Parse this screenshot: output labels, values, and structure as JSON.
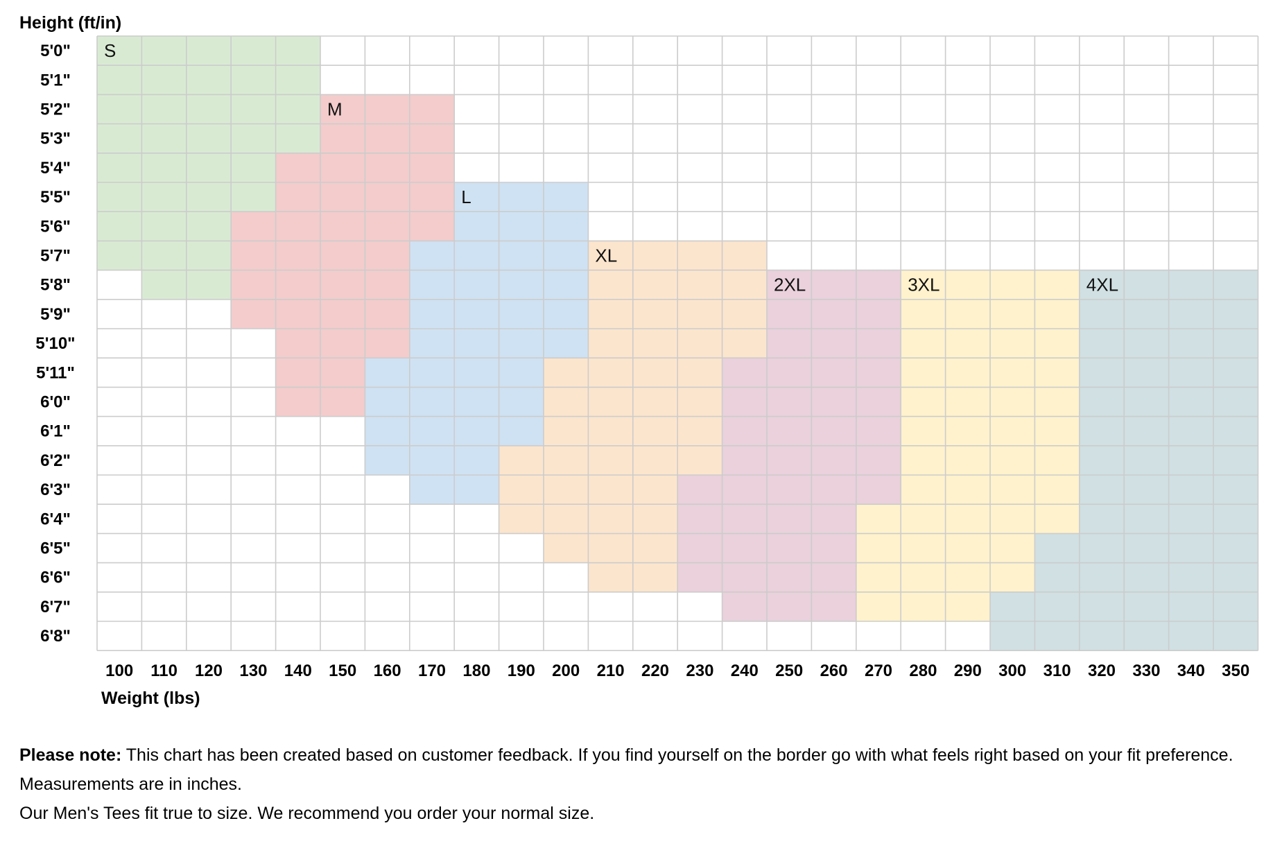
{
  "chart_data": {
    "type": "heatmap",
    "ylabel": "Height (ft/in)",
    "xlabel": "Weight (lbs)",
    "x": [
      100,
      110,
      120,
      130,
      140,
      150,
      160,
      170,
      180,
      190,
      200,
      210,
      220,
      230,
      240,
      250,
      260,
      270,
      280,
      290,
      300,
      310,
      320,
      330,
      340,
      350
    ],
    "y": [
      "5'0\"",
      "5'1\"",
      "5'2\"",
      "5'3\"",
      "5'4\"",
      "5'5\"",
      "5'6\"",
      "5'7\"",
      "5'8\"",
      "5'9\"",
      "5'10\"",
      "5'11\"",
      "6'0\"",
      "6'1\"",
      "6'2\"",
      "6'3\"",
      "6'4\"",
      "6'5\"",
      "6'6\"",
      "6'7\"",
      "6'8\""
    ],
    "sizes": [
      {
        "name": "S",
        "color": "#d9ead3"
      },
      {
        "name": "M",
        "color": "#f4cccc"
      },
      {
        "name": "L",
        "color": "#cfe2f3"
      },
      {
        "name": "XL",
        "color": "#fce5cd"
      },
      {
        "name": "2XL",
        "color": "#ead1dc"
      },
      {
        "name": "3XL",
        "color": "#fff2cc"
      },
      {
        "name": "4XL",
        "color": "#d0e0e3"
      }
    ],
    "size_by_height": [
      [
        {
          "size": "S",
          "from": 100,
          "to": 140
        }
      ],
      [
        {
          "size": "S",
          "from": 100,
          "to": 140
        }
      ],
      [
        {
          "size": "S",
          "from": 100,
          "to": 140
        },
        {
          "size": "M",
          "from": 150,
          "to": 170
        }
      ],
      [
        {
          "size": "S",
          "from": 100,
          "to": 140
        },
        {
          "size": "M",
          "from": 150,
          "to": 170
        }
      ],
      [
        {
          "size": "S",
          "from": 100,
          "to": 130
        },
        {
          "size": "M",
          "from": 140,
          "to": 170
        }
      ],
      [
        {
          "size": "S",
          "from": 100,
          "to": 130
        },
        {
          "size": "M",
          "from": 140,
          "to": 170
        },
        {
          "size": "L",
          "from": 180,
          "to": 200
        }
      ],
      [
        {
          "size": "S",
          "from": 100,
          "to": 120
        },
        {
          "size": "M",
          "from": 130,
          "to": 170
        },
        {
          "size": "L",
          "from": 180,
          "to": 200
        }
      ],
      [
        {
          "size": "S",
          "from": 100,
          "to": 120
        },
        {
          "size": "M",
          "from": 130,
          "to": 160
        },
        {
          "size": "L",
          "from": 170,
          "to": 200
        },
        {
          "size": "XL",
          "from": 210,
          "to": 240
        }
      ],
      [
        {
          "size": "S",
          "from": 110,
          "to": 120
        },
        {
          "size": "M",
          "from": 130,
          "to": 160
        },
        {
          "size": "L",
          "from": 170,
          "to": 200
        },
        {
          "size": "XL",
          "from": 210,
          "to": 240
        },
        {
          "size": "2XL",
          "from": 250,
          "to": 270
        },
        {
          "size": "3XL",
          "from": 280,
          "to": 310
        },
        {
          "size": "4XL",
          "from": 320,
          "to": 350
        }
      ],
      [
        {
          "size": "M",
          "from": 130,
          "to": 160
        },
        {
          "size": "L",
          "from": 170,
          "to": 200
        },
        {
          "size": "XL",
          "from": 210,
          "to": 240
        },
        {
          "size": "2XL",
          "from": 250,
          "to": 270
        },
        {
          "size": "3XL",
          "from": 280,
          "to": 310
        },
        {
          "size": "4XL",
          "from": 320,
          "to": 350
        }
      ],
      [
        {
          "size": "M",
          "from": 140,
          "to": 160
        },
        {
          "size": "L",
          "from": 170,
          "to": 200
        },
        {
          "size": "XL",
          "from": 210,
          "to": 240
        },
        {
          "size": "2XL",
          "from": 250,
          "to": 270
        },
        {
          "size": "3XL",
          "from": 280,
          "to": 310
        },
        {
          "size": "4XL",
          "from": 320,
          "to": 350
        }
      ],
      [
        {
          "size": "M",
          "from": 140,
          "to": 150
        },
        {
          "size": "L",
          "from": 160,
          "to": 190
        },
        {
          "size": "XL",
          "from": 200,
          "to": 230
        },
        {
          "size": "2XL",
          "from": 240,
          "to": 270
        },
        {
          "size": "3XL",
          "from": 280,
          "to": 310
        },
        {
          "size": "4XL",
          "from": 320,
          "to": 350
        }
      ],
      [
        {
          "size": "M",
          "from": 140,
          "to": 150
        },
        {
          "size": "L",
          "from": 160,
          "to": 190
        },
        {
          "size": "XL",
          "from": 200,
          "to": 230
        },
        {
          "size": "2XL",
          "from": 240,
          "to": 270
        },
        {
          "size": "3XL",
          "from": 280,
          "to": 310
        },
        {
          "size": "4XL",
          "from": 320,
          "to": 350
        }
      ],
      [
        {
          "size": "L",
          "from": 160,
          "to": 190
        },
        {
          "size": "XL",
          "from": 200,
          "to": 230
        },
        {
          "size": "2XL",
          "from": 240,
          "to": 270
        },
        {
          "size": "3XL",
          "from": 280,
          "to": 310
        },
        {
          "size": "4XL",
          "from": 320,
          "to": 350
        }
      ],
      [
        {
          "size": "L",
          "from": 160,
          "to": 180
        },
        {
          "size": "XL",
          "from": 190,
          "to": 230
        },
        {
          "size": "2XL",
          "from": 240,
          "to": 270
        },
        {
          "size": "3XL",
          "from": 280,
          "to": 310
        },
        {
          "size": "4XL",
          "from": 320,
          "to": 350
        }
      ],
      [
        {
          "size": "L",
          "from": 170,
          "to": 180
        },
        {
          "size": "XL",
          "from": 190,
          "to": 220
        },
        {
          "size": "2XL",
          "from": 230,
          "to": 270
        },
        {
          "size": "3XL",
          "from": 280,
          "to": 310
        },
        {
          "size": "4XL",
          "from": 320,
          "to": 350
        }
      ],
      [
        {
          "size": "XL",
          "from": 190,
          "to": 220
        },
        {
          "size": "2XL",
          "from": 230,
          "to": 260
        },
        {
          "size": "3XL",
          "from": 270,
          "to": 310
        },
        {
          "size": "4XL",
          "from": 320,
          "to": 350
        }
      ],
      [
        {
          "size": "XL",
          "from": 200,
          "to": 220
        },
        {
          "size": "2XL",
          "from": 230,
          "to": 260
        },
        {
          "size": "3XL",
          "from": 270,
          "to": 300
        },
        {
          "size": "4XL",
          "from": 310,
          "to": 350
        }
      ],
      [
        {
          "size": "XL",
          "from": 210,
          "to": 220
        },
        {
          "size": "2XL",
          "from": 230,
          "to": 260
        },
        {
          "size": "3XL",
          "from": 270,
          "to": 300
        },
        {
          "size": "4XL",
          "from": 310,
          "to": 350
        }
      ],
      [
        {
          "size": "2XL",
          "from": 240,
          "to": 260
        },
        {
          "size": "3XL",
          "from": 270,
          "to": 290
        },
        {
          "size": "4XL",
          "from": 300,
          "to": 350
        }
      ],
      [
        {
          "size": "4XL",
          "from": 300,
          "to": 350
        }
      ]
    ],
    "annotations": [
      {
        "text": "S",
        "height": "5'0\"",
        "weight": 100
      },
      {
        "text": "M",
        "height": "5'2\"",
        "weight": 150
      },
      {
        "text": "L",
        "height": "5'5\"",
        "weight": 180
      },
      {
        "text": "XL",
        "height": "5'7\"",
        "weight": 210
      },
      {
        "text": "2XL",
        "height": "5'8\"",
        "weight": 250
      },
      {
        "text": "3XL",
        "height": "5'8\"",
        "weight": 280
      },
      {
        "text": "4XL",
        "height": "5'8\"",
        "weight": 320
      }
    ],
    "grid": true,
    "grid_color": "#cccccc"
  },
  "notes": {
    "note_bold": "Please note:",
    "note_text": " This chart has been created based on customer feedback. If you find yourself on the border go with what feels right based on your fit preference.",
    "measurements": "Measurements are in inches.",
    "fit": "Our Men's Tees fit true to size. We recommend you order your normal size."
  }
}
